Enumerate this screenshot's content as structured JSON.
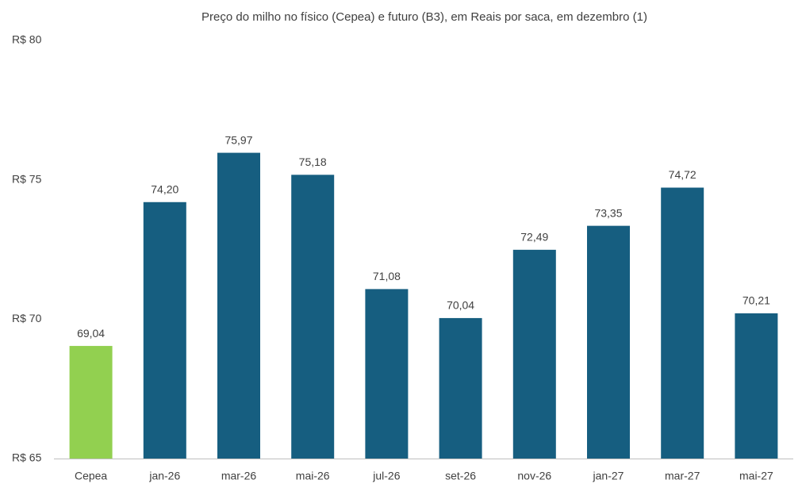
{
  "chart_data": {
    "type": "bar",
    "title": "Preço do milho no físico (Cepea) e futuro (B3), em Reais por saca, em dezembro (1)",
    "categories": [
      "Cepea",
      "jan-26",
      "mar-26",
      "mai-26",
      "jul-26",
      "set-26",
      "nov-26",
      "jan-27",
      "mar-27",
      "mai-27"
    ],
    "values": [
      69.04,
      74.2,
      75.97,
      75.18,
      71.08,
      70.04,
      72.49,
      73.35,
      74.72,
      70.21
    ],
    "value_labels": [
      "69,04",
      "74,20",
      "75,97",
      "75,18",
      "71,08",
      "70,04",
      "72,49",
      "73,35",
      "74,72",
      "70,21"
    ],
    "colors": [
      "#92d050",
      "#165e80",
      "#165e80",
      "#165e80",
      "#165e80",
      "#165e80",
      "#165e80",
      "#165e80",
      "#165e80",
      "#165e80"
    ],
    "ylim": [
      65,
      80
    ],
    "yticks": [
      {
        "value": 65,
        "label": "R$ 65"
      },
      {
        "value": 70,
        "label": "R$ 70"
      },
      {
        "value": 75,
        "label": "R$ 75"
      },
      {
        "value": 80,
        "label": "R$ 80"
      }
    ],
    "grid": false
  }
}
